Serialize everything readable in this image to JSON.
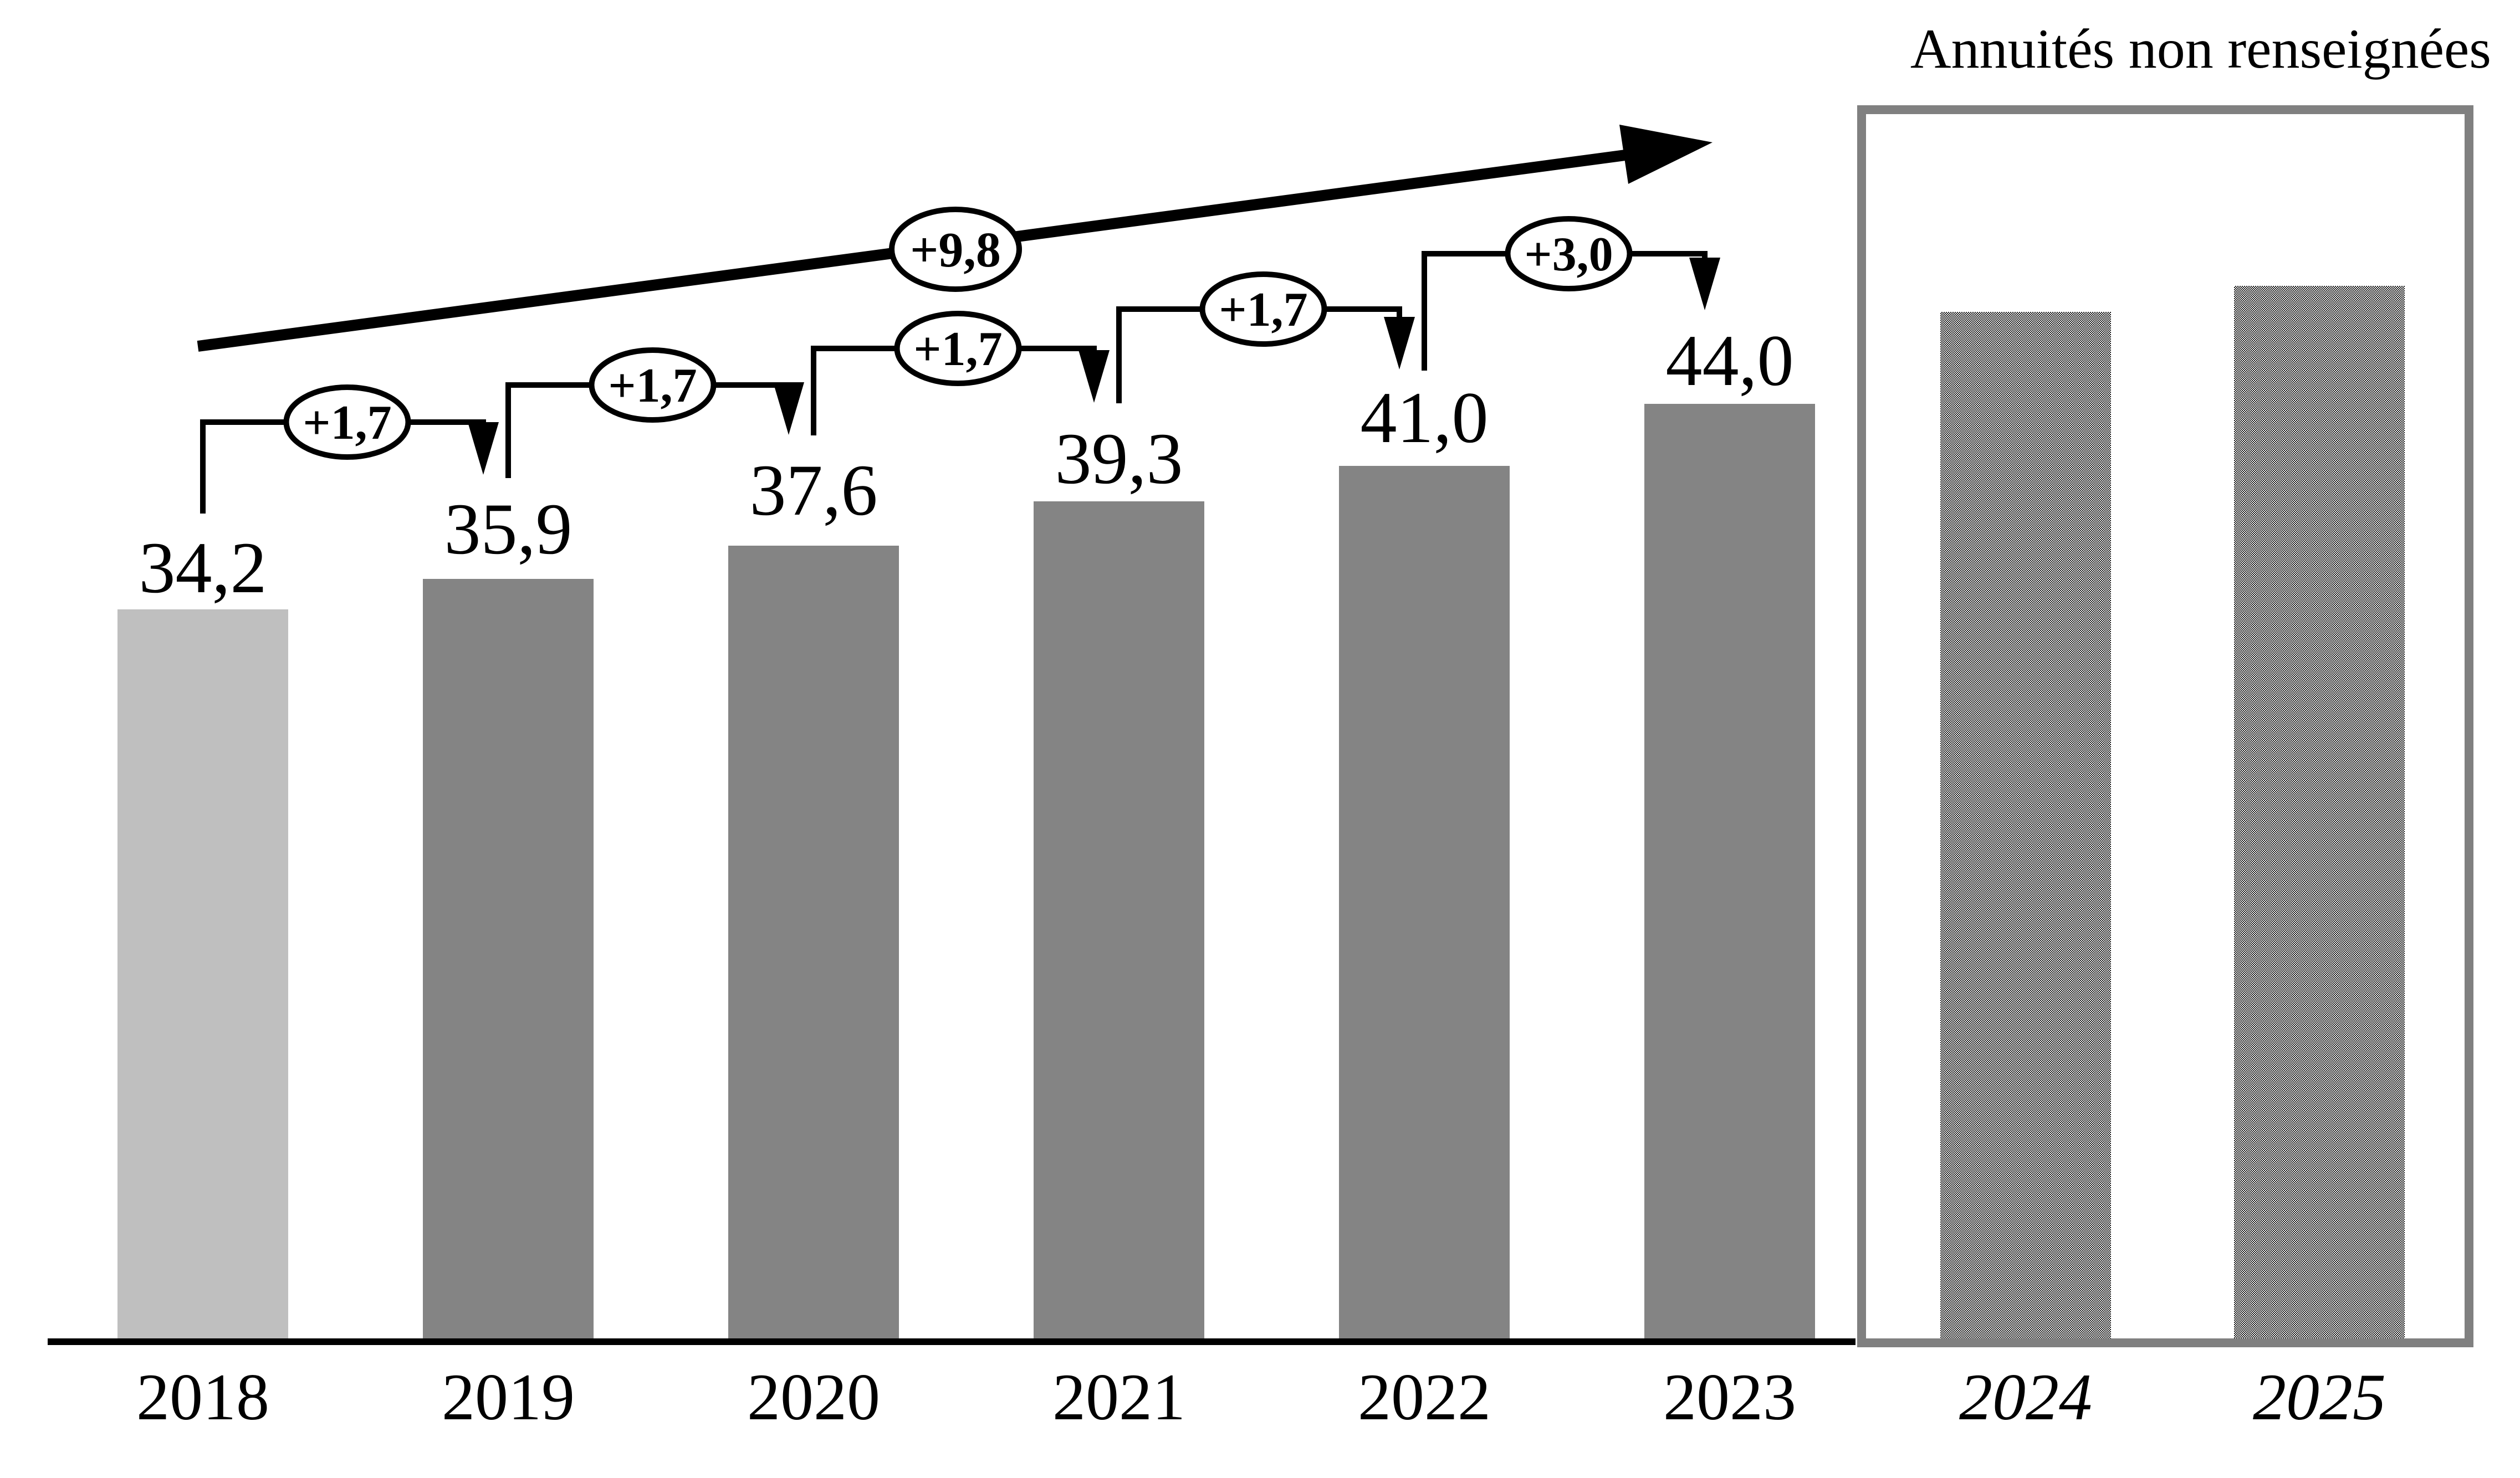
{
  "chart_data": {
    "type": "bar",
    "title": "",
    "xlabel": "",
    "ylabel": "",
    "grid": false,
    "legend_position": "none",
    "categories": [
      "2018",
      "2019",
      "2020",
      "2021",
      "2022",
      "2023",
      "2024",
      "2025"
    ],
    "values": [
      34.2,
      35.9,
      37.6,
      39.3,
      41.0,
      44.0,
      null,
      null
    ],
    "value_labels": [
      "34,2",
      "35,9",
      "37,6",
      "39,3",
      "41,0",
      "44,0"
    ],
    "italic_categories": [
      "2024",
      "2025"
    ],
    "increments": [
      {
        "from": "2018",
        "to": "2019",
        "label": "+1,7"
      },
      {
        "from": "2019",
        "to": "2020",
        "label": "+1,7"
      },
      {
        "from": "2020",
        "to": "2021",
        "label": "+1,7"
      },
      {
        "from": "2021",
        "to": "2022",
        "label": "+1,7"
      },
      {
        "from": "2022",
        "to": "2023",
        "label": "+3,0"
      }
    ],
    "total_increment_label": "+9,8",
    "annotation_box_title": "Annuités non renseignées",
    "annotation_box_categories": [
      "2024",
      "2025"
    ]
  },
  "colors": {
    "background": "#ffffff",
    "bar_first": "#bfbfbf",
    "bar_dark": "#848484",
    "box_border": "#808080",
    "ink": "#000000"
  }
}
